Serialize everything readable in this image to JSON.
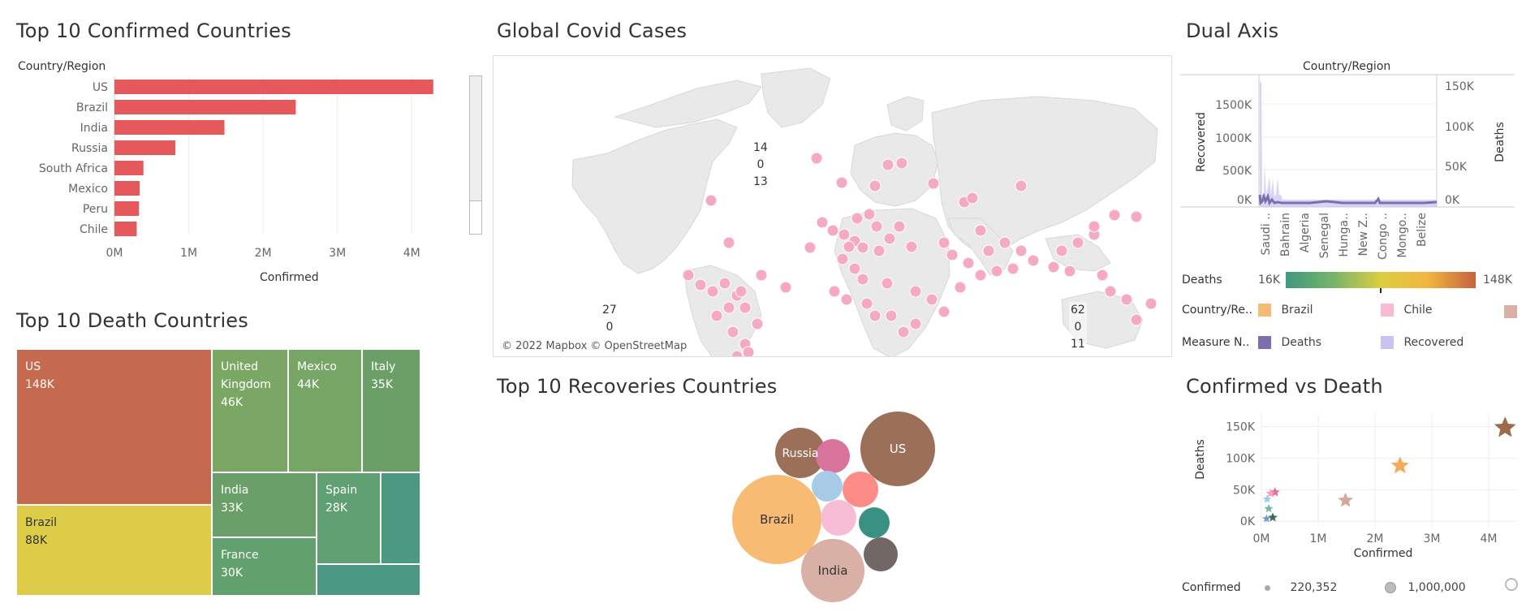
{
  "panels": {
    "top_confirmed": {
      "title": "Top 10 Confirmed Countries",
      "axis_header": "Country/Region",
      "x_axis_label": "Confirmed",
      "bar_color": "#e5585b"
    },
    "global": {
      "title": "Global Covid Cases",
      "attribution": "© 2022 Mapbox © OpenStreetMap",
      "point_color": "#f6a9c4",
      "labels": [
        {
          "lines": [
            "14",
            "0",
            "13"
          ]
        },
        {
          "lines": [
            "27",
            "0"
          ]
        },
        {
          "lines": [
            "62",
            "0",
            "11"
          ]
        }
      ]
    },
    "dual_axis": {
      "title": "Dual Axis",
      "header": "Country/Region",
      "left_axis_label": "Recovered",
      "right_axis_label": "Deaths",
      "left_ticks": [
        "1500K",
        "1000K",
        "500K",
        "0K"
      ],
      "right_ticks": [
        "150K",
        "100K",
        "50K",
        "0K"
      ],
      "x_labels": [
        "Saudi ..",
        "Bahrain",
        "Algeria",
        "Senegal",
        "Hunga..",
        "New Z..",
        "Congo ..",
        "Mongo..",
        "Belize"
      ],
      "line_color": "#7b6faf"
    },
    "legends": {
      "deaths_label": "Deaths",
      "deaths_min": "16K",
      "deaths_max": "148K",
      "country_label": "Country/Re..",
      "country_items": [
        {
          "name": "Brazil",
          "color": "#f6bb73"
        },
        {
          "name": "Chile",
          "color": "#f7bcd3"
        }
      ],
      "measure_label": "Measure N..",
      "measure_items": [
        {
          "name": "Deaths",
          "color": "#7b6faf"
        },
        {
          "name": "Recovered",
          "color": "#c8c3f0"
        }
      ]
    },
    "top_death": {
      "title": "Top 10 Death Countries",
      "cells": [
        {
          "country": "US",
          "value": "148K"
        },
        {
          "country": "Brazil",
          "value": "88K"
        },
        {
          "country": "United Kingdom",
          "value": "46K"
        },
        {
          "country": "Mexico",
          "value": "44K"
        },
        {
          "country": "Italy",
          "value": "35K"
        },
        {
          "country": "India",
          "value": "33K"
        },
        {
          "country": "Spain",
          "value": "28K"
        },
        {
          "country": "France",
          "value": "30K"
        }
      ]
    },
    "recoveries": {
      "title": "Top 10 Recoveries Countries",
      "bubbles": [
        {
          "label": "Brazil"
        },
        {
          "label": "US"
        },
        {
          "label": "Russia"
        },
        {
          "label": "India"
        }
      ]
    },
    "confirmed_vs_death": {
      "title": "Confirmed vs Death",
      "y_axis_label": "Deaths",
      "x_axis_label": "Confirmed",
      "size_legend_label": "Confirmed",
      "size_legend_values": [
        "220,352",
        "1,000,000"
      ]
    }
  },
  "chart_data": [
    {
      "type": "bar",
      "title": "Top 10 Confirmed Countries",
      "categories": [
        "US",
        "Brazil",
        "India",
        "Russia",
        "South Africa",
        "Mexico",
        "Peru",
        "Chile"
      ],
      "values": [
        4290000,
        2440000,
        1480000,
        820000,
        390000,
        340000,
        330000,
        300000
      ],
      "xlabel": "Confirmed",
      "ylabel": "Country/Region",
      "x_ticks": [
        "0M",
        "1M",
        "2M",
        "3M",
        "4M"
      ],
      "xlim": [
        0,
        4500000
      ]
    },
    {
      "type": "scatter",
      "title": "Confirmed vs Death",
      "xlabel": "Confirmed",
      "ylabel": "Deaths",
      "x_ticks": [
        "0M",
        "1M",
        "2M",
        "3M",
        "4M"
      ],
      "y_ticks": [
        "150K",
        "100K",
        "50K",
        "0K"
      ],
      "xlim": [
        0,
        4500000
      ],
      "ylim": [
        -10000,
        170000
      ],
      "points": [
        {
          "x": 4290000,
          "y": 148000,
          "color": "#9c6b4e"
        },
        {
          "x": 2440000,
          "y": 88000,
          "color": "#f6a85b"
        },
        {
          "x": 1480000,
          "y": 33000,
          "color": "#d6a89a"
        },
        {
          "x": 240000,
          "y": 46000,
          "color": "#e06e93"
        },
        {
          "x": 160000,
          "y": 44000,
          "color": "#f7a3c0"
        },
        {
          "x": 100000,
          "y": 35000,
          "color": "#9fcbe8"
        },
        {
          "x": 130000,
          "y": 20000,
          "color": "#78b6a8"
        },
        {
          "x": 200000,
          "y": 6000,
          "color": "#3b6e52"
        },
        {
          "x": 90000,
          "y": 4000,
          "color": "#6f9fc8"
        }
      ]
    }
  ]
}
